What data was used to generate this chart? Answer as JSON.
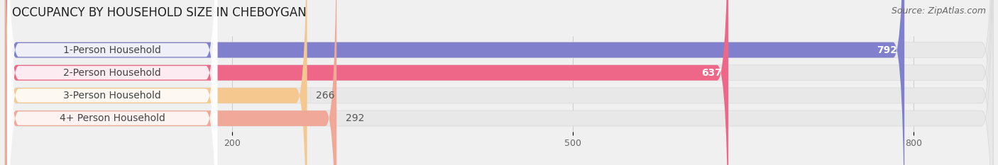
{
  "title": "OCCUPANCY BY HOUSEHOLD SIZE IN CHEBOYGAN",
  "source": "Source: ZipAtlas.com",
  "categories": [
    "1-Person Household",
    "2-Person Household",
    "3-Person Household",
    "4+ Person Household"
  ],
  "values": [
    792,
    637,
    266,
    292
  ],
  "bar_colors": [
    "#8080cc",
    "#ee6688",
    "#f5c890",
    "#f0a898"
  ],
  "label_colors": [
    "#444444",
    "#444444",
    "#444444",
    "#444444"
  ],
  "value_colors": [
    "white",
    "white",
    "#555555",
    "#555555"
  ],
  "xlim_max": 870,
  "xticks": [
    200,
    500,
    800
  ],
  "title_fontsize": 12,
  "source_fontsize": 9,
  "label_fontsize": 10,
  "value_fontsize": 10,
  "background_color": "#f0f0f0",
  "bar_bg_color": "#e8e8e8",
  "bar_bg_border": "#d8d8d8"
}
